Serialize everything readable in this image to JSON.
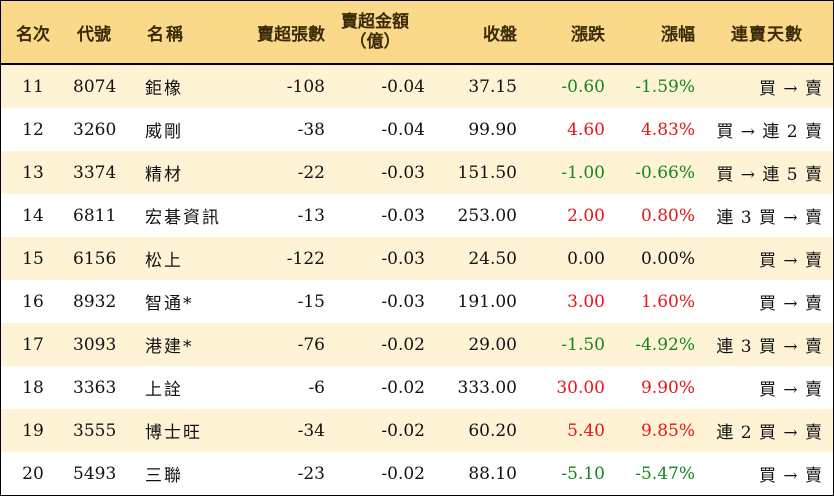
{
  "headers": {
    "rank": "名次",
    "code": "代號",
    "name": "名稱",
    "lots": "賣超張數",
    "amount_line1": "賣超金額",
    "amount_line2": "（億）",
    "close": "收盤",
    "change": "漲跌",
    "pct": "漲幅",
    "days": "連賣天數"
  },
  "colors": {
    "header_bg": "#fad98b",
    "alt_row_bg": "#fff3d6",
    "up": "#e8151b",
    "down": "#14871e"
  },
  "rows": [
    {
      "rank": "11",
      "code": "8074",
      "name": "鉅橡",
      "lots": "-108",
      "amount": "-0.04",
      "close": "37.15",
      "change": "-0.60",
      "pct": "-1.59%",
      "trend": "down",
      "days": "買 → 賣"
    },
    {
      "rank": "12",
      "code": "3260",
      "name": "威剛",
      "lots": "-38",
      "amount": "-0.04",
      "close": "99.90",
      "change": "4.60",
      "pct": "4.83%",
      "trend": "up",
      "days": "買 → 連 2 賣"
    },
    {
      "rank": "13",
      "code": "3374",
      "name": "精材",
      "lots": "-22",
      "amount": "-0.03",
      "close": "151.50",
      "change": "-1.00",
      "pct": "-0.66%",
      "trend": "down",
      "days": "買 → 連 5 賣"
    },
    {
      "rank": "14",
      "code": "6811",
      "name": "宏碁資訊",
      "lots": "-13",
      "amount": "-0.03",
      "close": "253.00",
      "change": "2.00",
      "pct": "0.80%",
      "trend": "up",
      "days": "連 3 買 → 賣"
    },
    {
      "rank": "15",
      "code": "6156",
      "name": "松上",
      "lots": "-122",
      "amount": "-0.03",
      "close": "24.50",
      "change": "0.00",
      "pct": "0.00%",
      "trend": "flat",
      "days": "買 → 賣"
    },
    {
      "rank": "16",
      "code": "8932",
      "name": "智通*",
      "lots": "-15",
      "amount": "-0.03",
      "close": "191.00",
      "change": "3.00",
      "pct": "1.60%",
      "trend": "up",
      "days": "買 → 賣"
    },
    {
      "rank": "17",
      "code": "3093",
      "name": "港建*",
      "lots": "-76",
      "amount": "-0.02",
      "close": "29.00",
      "change": "-1.50",
      "pct": "-4.92%",
      "trend": "down",
      "days": "連 3 買 → 賣"
    },
    {
      "rank": "18",
      "code": "3363",
      "name": "上詮",
      "lots": "-6",
      "amount": "-0.02",
      "close": "333.00",
      "change": "30.00",
      "pct": "9.90%",
      "trend": "up",
      "days": "買 → 賣"
    },
    {
      "rank": "19",
      "code": "3555",
      "name": "博士旺",
      "lots": "-34",
      "amount": "-0.02",
      "close": "60.20",
      "change": "5.40",
      "pct": "9.85%",
      "trend": "up",
      "days": "連 2 買 → 賣"
    },
    {
      "rank": "20",
      "code": "5493",
      "name": "三聯",
      "lots": "-23",
      "amount": "-0.02",
      "close": "88.10",
      "change": "-5.10",
      "pct": "-5.47%",
      "trend": "down",
      "days": "買 → 賣"
    }
  ]
}
